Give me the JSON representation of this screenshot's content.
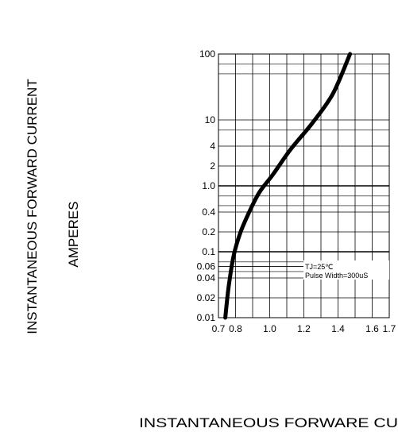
{
  "chart_data": {
    "type": "line",
    "title": "",
    "ylabel": "INSTANTANEOUS FORWARD CURRENT",
    "ylabel_unit": "AMPERES",
    "xlabel": "INSTANTANEOUS FORWARE CU",
    "y_scale": "log",
    "ylim": [
      0.01,
      100
    ],
    "xlim": [
      0.7,
      1.7
    ],
    "grid": true,
    "x_ticks": [
      {
        "value": 0.7,
        "label": "0.7"
      },
      {
        "value": 0.8,
        "label": "0.8"
      },
      {
        "value": 1.0,
        "label": "1.0"
      },
      {
        "value": 1.2,
        "label": "1.2"
      },
      {
        "value": 1.4,
        "label": "1.4"
      },
      {
        "value": 1.6,
        "label": "1.6"
      },
      {
        "value": 1.7,
        "label": "1.7"
      }
    ],
    "y_ticks": [
      {
        "value": 100,
        "label": "100"
      },
      {
        "value": 10,
        "label": "10"
      },
      {
        "value": 4,
        "label": "4"
      },
      {
        "value": 2,
        "label": "2"
      },
      {
        "value": 1,
        "label": "1.0"
      },
      {
        "value": 0.4,
        "label": "0.4"
      },
      {
        "value": 0.2,
        "label": "0.2"
      },
      {
        "value": 0.1,
        "label": "0.1"
      },
      {
        "value": 0.06,
        "label": "0.06"
      },
      {
        "value": 0.04,
        "label": "0.04"
      },
      {
        "value": 0.02,
        "label": "0.02"
      },
      {
        "value": 0.01,
        "label": "0.01"
      }
    ],
    "y_minor_grid": [
      70,
      50,
      7,
      0.7,
      0.5,
      0.07,
      0.05
    ],
    "x_minor_grid": [
      0.9,
      1.1,
      1.3,
      1.5
    ],
    "series": [
      {
        "x": [
          0.74,
          0.76,
          0.79,
          0.83,
          0.88,
          0.94,
          1.02,
          1.12,
          1.25,
          1.37,
          1.47
        ],
        "y": [
          0.01,
          0.03,
          0.09,
          0.2,
          0.4,
          0.8,
          1.5,
          3.5,
          9,
          25,
          100
        ]
      }
    ],
    "annotation": [
      "TJ=25℃",
      "Pulse Width=300uS"
    ]
  }
}
